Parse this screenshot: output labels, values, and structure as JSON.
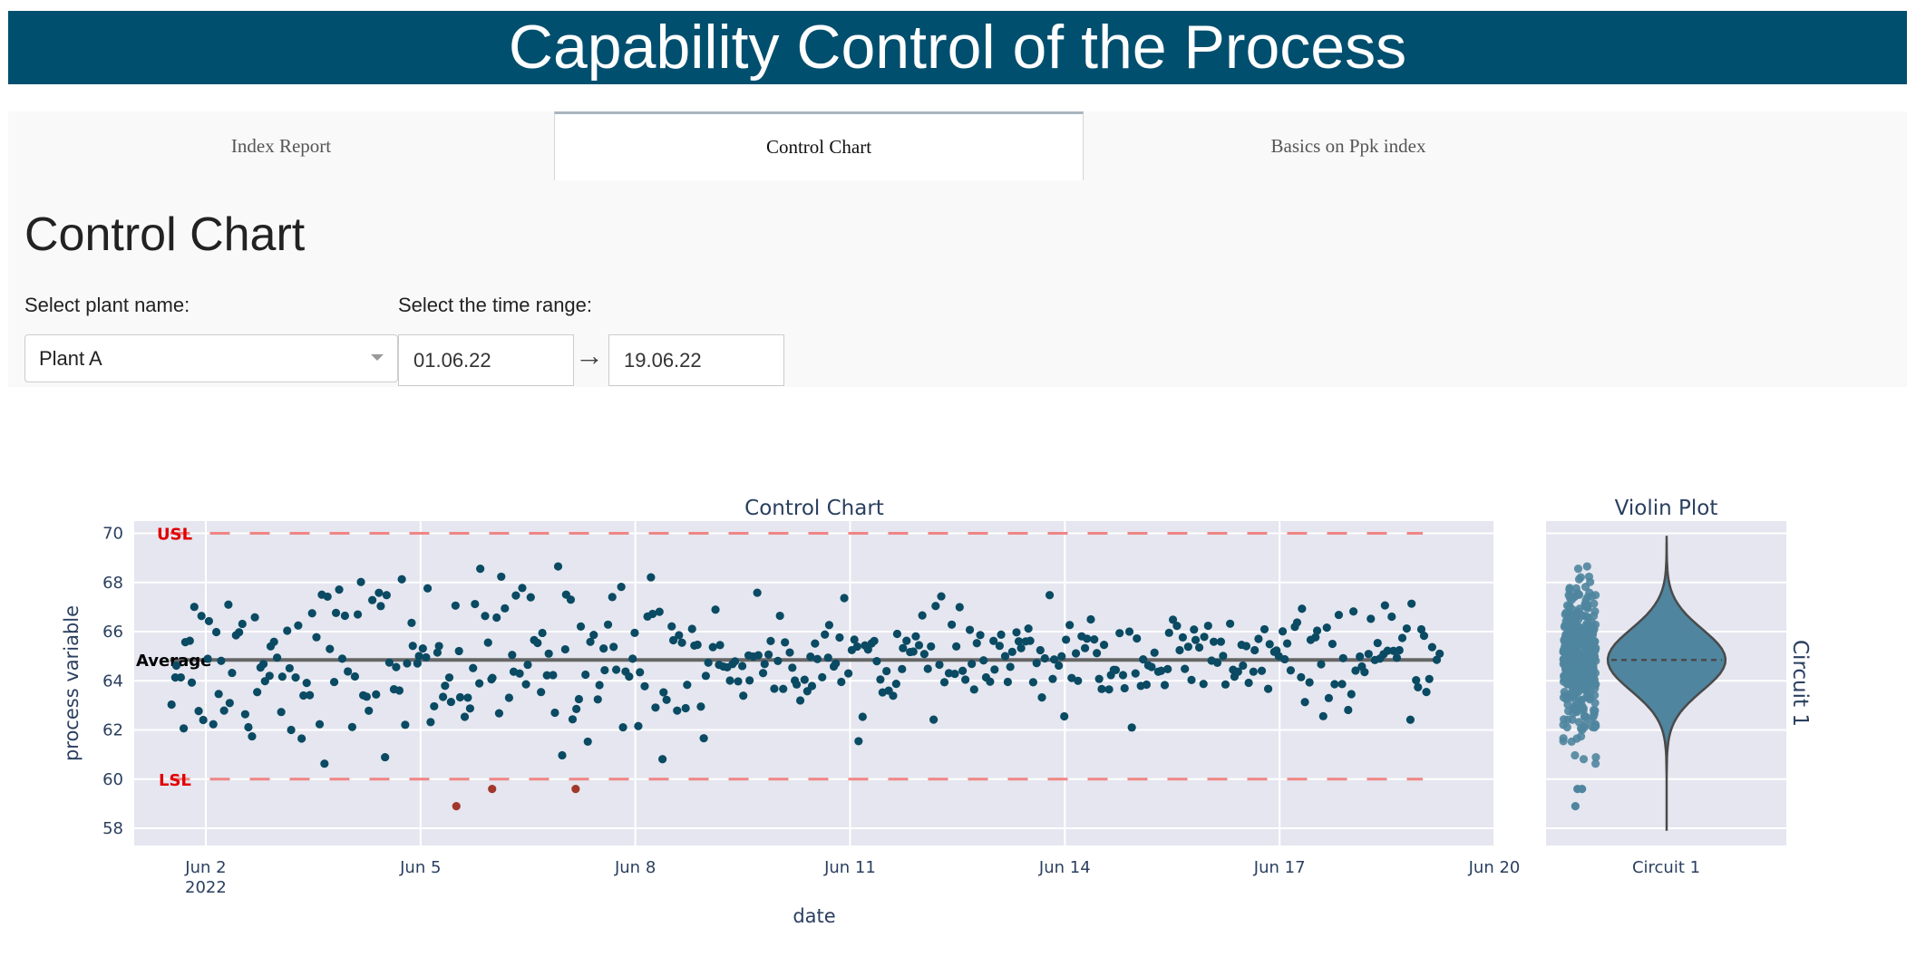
{
  "app": {
    "title": "Capability Control of the Process"
  },
  "tabs": [
    {
      "label": "Index Report"
    },
    {
      "label": "Control Chart",
      "active": true
    },
    {
      "label": "Basics on Ppk index"
    }
  ],
  "page": {
    "heading": "Control Chart"
  },
  "filters": {
    "plant_label": "Select plant name:",
    "plant_value": "Plant A",
    "time_label": "Select the time range:",
    "start_date": "01.06.22",
    "end_date": "19.06.22",
    "range_arrow": "→"
  },
  "colors": {
    "banner": "#004f6e",
    "point": "#0a4a63",
    "out_of_spec_point": "#a2382b",
    "spec_line": "#f08585",
    "average_line": "#666666",
    "violin_fill": "#4f859f",
    "plot_bg": "#e5e6ef"
  },
  "chart_data": [
    {
      "type": "scatter",
      "title": "Control Chart",
      "xlabel": "date",
      "ylabel": "process variable",
      "x_range": [
        "2022-06-01",
        "2022-06-20"
      ],
      "ylim": [
        57.3,
        70.5
      ],
      "x_ticks": [
        {
          "date": "2022-06-02",
          "label": "Jun 2",
          "sub": "2022"
        },
        {
          "date": "2022-06-05",
          "label": "Jun 5"
        },
        {
          "date": "2022-06-08",
          "label": "Jun 8"
        },
        {
          "date": "2022-06-11",
          "label": "Jun 11"
        },
        {
          "date": "2022-06-14",
          "label": "Jun 14"
        },
        {
          "date": "2022-06-17",
          "label": "Jun 17"
        },
        {
          "date": "2022-06-20",
          "label": "Jun 20"
        }
      ],
      "y_ticks": [
        58,
        60,
        62,
        64,
        66,
        68,
        70
      ],
      "grid": true,
      "limits": {
        "USL": 70,
        "LSL": 60,
        "Average": 64.85
      },
      "limit_labels": {
        "usl": "USL",
        "lsl": "LSL",
        "average": "Average"
      },
      "points_out_of_spec": [
        {
          "x": "2022-06-05 12:00",
          "y": 58.9
        },
        {
          "x": "2022-06-06 00:00",
          "y": 59.6
        },
        {
          "x": "2022-06-07 04:00",
          "y": 59.6
        }
      ],
      "points_in_spec_note": "≈430 in-spec measurements between Jun 1 and Jun 19, spread mostly 61–68.9"
    },
    {
      "type": "violin",
      "title": "Violin Plot",
      "category": "Circuit 1",
      "side_label": "Circuit 1",
      "ylim": [
        57.3,
        70.5
      ],
      "min": 58.9,
      "max": 68.9,
      "median": 64.85,
      "q1": 63.9,
      "q3": 65.9
    }
  ]
}
